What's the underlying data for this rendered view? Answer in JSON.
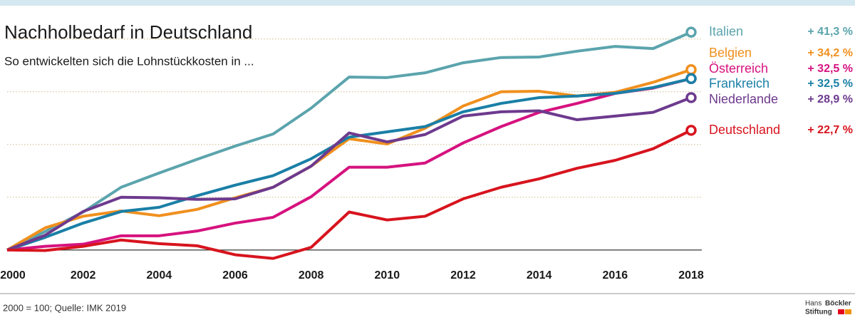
{
  "chart_data": {
    "type": "line",
    "title": "Nachholbedarf in Deutschland",
    "subtitle": "So entwickelten sich die Lohnstückkosten in ...",
    "note": "2000 = 100; Quelle: IMK 2019",
    "source_logo": [
      "Hans",
      "Böckler",
      "Stiftung"
    ],
    "x": [
      2000,
      2001,
      2002,
      2003,
      2004,
      2005,
      2006,
      2007,
      2008,
      2009,
      2010,
      2011,
      2012,
      2013,
      2014,
      2015,
      2016,
      2017,
      2018
    ],
    "xlim": [
      2000,
      2018
    ],
    "xticks": [
      2000,
      2002,
      2004,
      2006,
      2008,
      2010,
      2012,
      2014,
      2016,
      2018
    ],
    "ylim": [
      97,
      142
    ],
    "yticks": [
      100,
      110,
      120,
      130,
      140
    ],
    "grid": true,
    "series": [
      {
        "name": "Italien",
        "color": "#5ba4ad",
        "value_label": "+ 41,3 %",
        "values": [
          100,
          103.5,
          107.2,
          111.9,
          114.6,
          117.2,
          119.7,
          122,
          126.9,
          132.8,
          132.7,
          133.6,
          135.5,
          136.5,
          136.6,
          137.7,
          138.6,
          138.2,
          141.3
        ]
      },
      {
        "name": "Belgien",
        "color": "#f0901e",
        "value_label": "+ 34,2 %",
        "values": [
          100,
          104.2,
          106.4,
          107.4,
          106.5,
          107.7,
          109.9,
          111.9,
          115.9,
          121.1,
          120.1,
          123.1,
          127.3,
          130,
          130.1,
          129.2,
          129.9,
          131.8,
          134.2
        ]
      },
      {
        "name": "Österreich",
        "color": "#d6127f",
        "value_label": "+ 32,5 %",
        "values": [
          100,
          100.7,
          101.1,
          102.7,
          102.7,
          103.6,
          105.1,
          106.2,
          110.1,
          115.7,
          115.7,
          116.5,
          120.3,
          123.4,
          126.1,
          127.8,
          129.7,
          130.7,
          132.5
        ]
      },
      {
        "name": "Frankreich",
        "color": "#1a7fa6",
        "value_label": "+ 32,5 %",
        "values": [
          100,
          102.4,
          105.1,
          107.3,
          108.1,
          110.3,
          112.3,
          114.1,
          117.3,
          121.4,
          122.4,
          123.4,
          126.2,
          127.8,
          128.9,
          129.2,
          129.7,
          130.8,
          132.5
        ]
      },
      {
        "name": "Niederlande",
        "color": "#6d3a8e",
        "value_label": "+ 28,9 %",
        "values": [
          100,
          102.8,
          107.3,
          110,
          109.9,
          109.6,
          109.7,
          111.9,
          115.9,
          122.2,
          120.5,
          121.9,
          125.4,
          126.2,
          126.4,
          124.7,
          125.4,
          126.1,
          128.9
        ]
      },
      {
        "name": "Deutschland",
        "color": "#d7141e",
        "value_label": "+ 22,7 %",
        "values": [
          100,
          99.9,
          100.7,
          101.9,
          101.2,
          100.8,
          99.1,
          98.4,
          100.5,
          107.2,
          105.7,
          106.4,
          109.7,
          111.9,
          113.5,
          115.5,
          117,
          119.2,
          122.7
        ]
      }
    ]
  }
}
